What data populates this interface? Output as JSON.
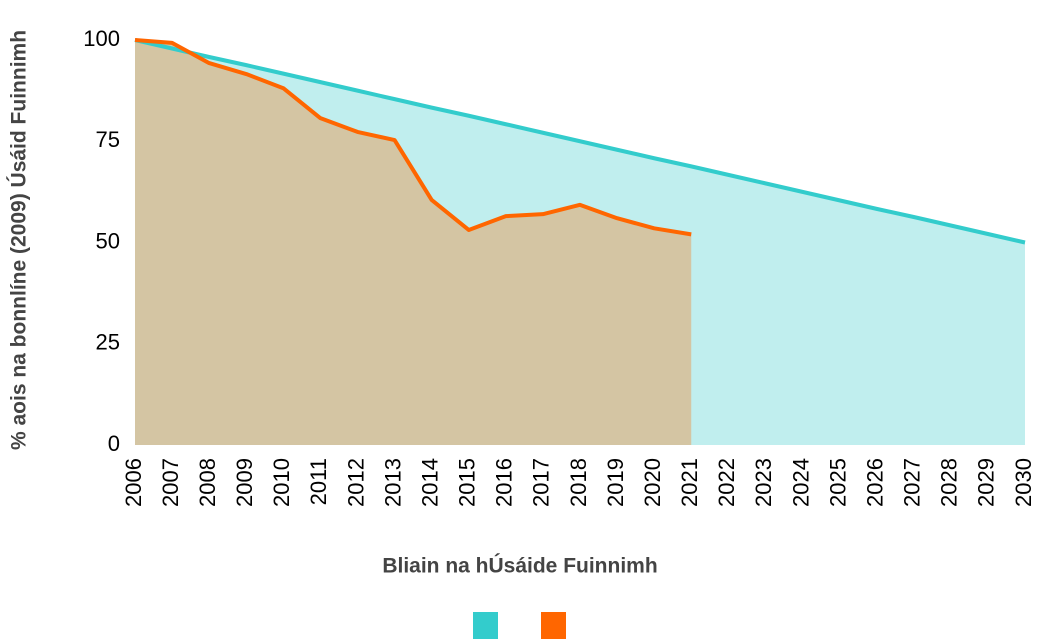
{
  "chart_data": {
    "type": "area",
    "xlabel": "Bliain na hÚsáide Fuinnimh",
    "ylabel": "% aois na bonnlíne (2009) Úsáid Fuinnimh",
    "categories": [
      "2006",
      "2007",
      "2008",
      "2009",
      "2010",
      "2011",
      "2012",
      "2013",
      "2014",
      "2015",
      "2016",
      "2017",
      "2018",
      "2019",
      "2020",
      "2021",
      "2022",
      "2023",
      "2024",
      "2025",
      "2026",
      "2027",
      "2028",
      "2029",
      "2030"
    ],
    "series": [
      {
        "color": "#33cccc",
        "fill": "#c0eeee",
        "values": [
          100,
          97.9,
          95.8,
          93.8,
          91.7,
          89.6,
          87.5,
          85.4,
          83.3,
          81.3,
          79.2,
          77.1,
          75,
          72.9,
          70.8,
          68.8,
          66.7,
          64.6,
          62.5,
          60.4,
          58.3,
          56.3,
          54.2,
          52.1,
          50
        ]
      },
      {
        "color": "#ff6600",
        "fill": "#d4c5a3",
        "values": [
          100,
          99.3,
          94.3,
          91.6,
          88.1,
          80.7,
          77.3,
          75.3,
          60.5,
          53.1,
          56.5,
          57,
          59.3,
          56,
          53.5,
          52,
          null,
          null,
          null,
          null,
          null,
          null,
          null,
          null,
          null
        ]
      }
    ],
    "ylim": [
      0,
      100
    ],
    "yticks": [
      0,
      25,
      50,
      75,
      100
    ],
    "grid": false,
    "legend": "bottom"
  }
}
